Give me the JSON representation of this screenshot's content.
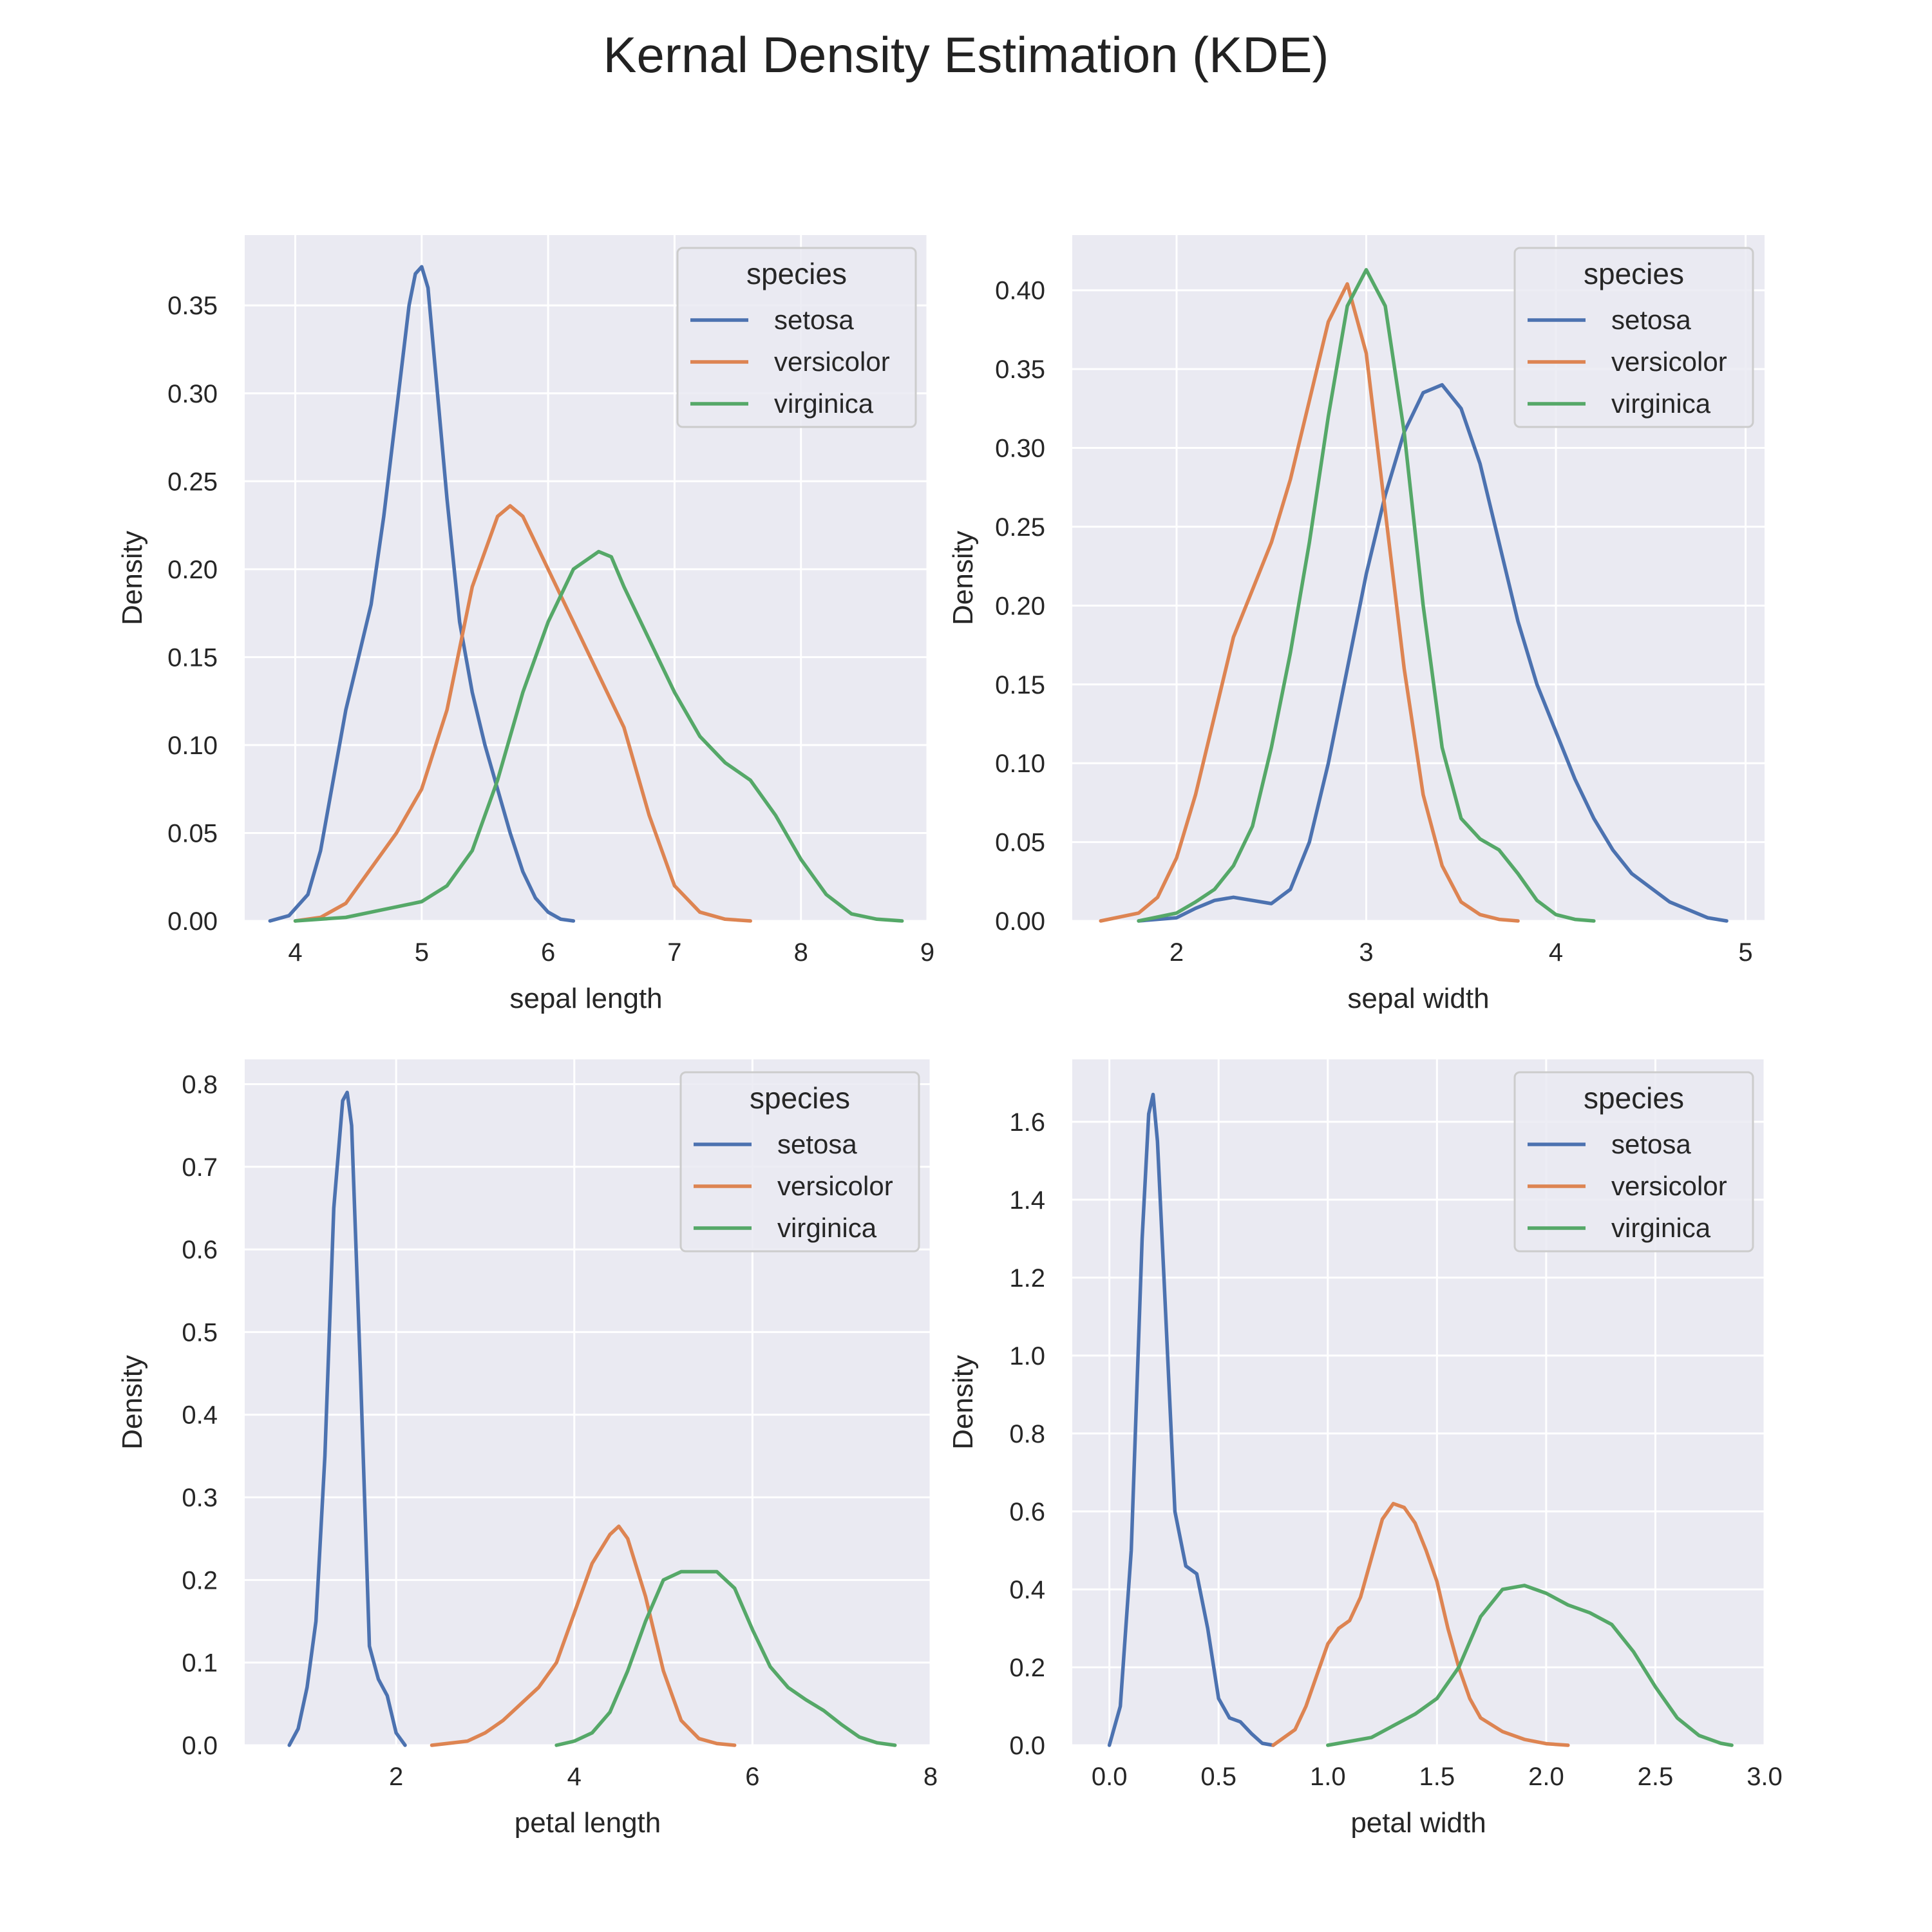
{
  "figure": {
    "title": "Kernal Density Estimation (KDE)"
  },
  "style": {
    "background": "#eaeaf2",
    "grid_color": "#ffffff",
    "series_colors": {
      "setosa": "#4c72b0",
      "versicolor": "#dd8452",
      "virginica": "#55a868"
    }
  },
  "chart_data": [
    {
      "type": "line",
      "xlabel": "sepal length",
      "ylabel": "Density",
      "xlim": [
        3.6,
        9.0
      ],
      "ylim": [
        0,
        0.39
      ],
      "xticks": [
        4,
        5,
        6,
        7,
        8,
        9
      ],
      "yticks": [
        0.0,
        0.05,
        0.1,
        0.15,
        0.2,
        0.25,
        0.3,
        0.35
      ],
      "ytick_decimals": 2,
      "xtick_decimals": 0,
      "grid": true,
      "legend": {
        "title": "species",
        "placement": "top-right",
        "entries": [
          "setosa",
          "versicolor",
          "virginica"
        ]
      },
      "series": [
        {
          "name": "setosa",
          "color": "#4c72b0",
          "x": [
            3.8,
            3.95,
            4.1,
            4.2,
            4.3,
            4.4,
            4.5,
            4.6,
            4.7,
            4.8,
            4.9,
            4.95,
            5.0,
            5.05,
            5.1,
            5.2,
            5.3,
            5.4,
            5.5,
            5.6,
            5.7,
            5.8,
            5.9,
            6.0,
            6.1,
            6.2
          ],
          "y": [
            0.0,
            0.003,
            0.015,
            0.04,
            0.08,
            0.12,
            0.15,
            0.18,
            0.23,
            0.29,
            0.35,
            0.368,
            0.372,
            0.36,
            0.32,
            0.24,
            0.17,
            0.13,
            0.1,
            0.075,
            0.05,
            0.028,
            0.013,
            0.005,
            0.001,
            0.0
          ]
        },
        {
          "name": "versicolor",
          "color": "#dd8452",
          "x": [
            4.0,
            4.2,
            4.4,
            4.6,
            4.8,
            5.0,
            5.2,
            5.4,
            5.6,
            5.7,
            5.8,
            6.0,
            6.2,
            6.4,
            6.6,
            6.8,
            7.0,
            7.2,
            7.4,
            7.6
          ],
          "y": [
            0.0,
            0.002,
            0.01,
            0.03,
            0.05,
            0.075,
            0.12,
            0.19,
            0.23,
            0.236,
            0.23,
            0.2,
            0.17,
            0.14,
            0.11,
            0.06,
            0.02,
            0.005,
            0.001,
            0.0
          ]
        },
        {
          "name": "virginica",
          "color": "#55a868",
          "x": [
            4.0,
            4.4,
            4.6,
            4.8,
            5.0,
            5.2,
            5.4,
            5.6,
            5.8,
            6.0,
            6.2,
            6.4,
            6.5,
            6.6,
            6.8,
            7.0,
            7.2,
            7.4,
            7.6,
            7.8,
            8.0,
            8.2,
            8.4,
            8.6,
            8.8
          ],
          "y": [
            0.0,
            0.002,
            0.005,
            0.008,
            0.011,
            0.02,
            0.04,
            0.08,
            0.13,
            0.17,
            0.2,
            0.21,
            0.207,
            0.19,
            0.16,
            0.13,
            0.105,
            0.09,
            0.08,
            0.06,
            0.035,
            0.015,
            0.004,
            0.001,
            0.0
          ]
        }
      ]
    },
    {
      "type": "line",
      "xlabel": "sepal width",
      "ylabel": "Density",
      "xlim": [
        1.45,
        5.1
      ],
      "ylim": [
        0,
        0.435
      ],
      "xticks": [
        2,
        3,
        4,
        5
      ],
      "yticks": [
        0.0,
        0.05,
        0.1,
        0.15,
        0.2,
        0.25,
        0.3,
        0.35,
        0.4
      ],
      "ytick_decimals": 2,
      "xtick_decimals": 0,
      "grid": true,
      "legend": {
        "title": "species",
        "placement": "top-right",
        "entries": [
          "setosa",
          "versicolor",
          "virginica"
        ]
      },
      "series": [
        {
          "name": "setosa",
          "color": "#4c72b0",
          "x": [
            1.8,
            2.0,
            2.1,
            2.2,
            2.3,
            2.4,
            2.5,
            2.6,
            2.7,
            2.8,
            2.9,
            3.0,
            3.1,
            3.2,
            3.3,
            3.4,
            3.5,
            3.6,
            3.7,
            3.8,
            3.9,
            4.0,
            4.1,
            4.2,
            4.3,
            4.4,
            4.6,
            4.8,
            4.9
          ],
          "y": [
            0.0,
            0.002,
            0.008,
            0.013,
            0.015,
            0.013,
            0.011,
            0.02,
            0.05,
            0.1,
            0.16,
            0.22,
            0.27,
            0.31,
            0.335,
            0.34,
            0.325,
            0.29,
            0.24,
            0.19,
            0.15,
            0.12,
            0.09,
            0.065,
            0.045,
            0.03,
            0.012,
            0.002,
            0.0
          ]
        },
        {
          "name": "versicolor",
          "color": "#dd8452",
          "x": [
            1.6,
            1.8,
            1.9,
            2.0,
            2.1,
            2.2,
            2.3,
            2.4,
            2.5,
            2.6,
            2.7,
            2.8,
            2.9,
            3.0,
            3.1,
            3.2,
            3.3,
            3.4,
            3.5,
            3.6,
            3.7,
            3.8
          ],
          "y": [
            0.0,
            0.005,
            0.015,
            0.04,
            0.08,
            0.13,
            0.18,
            0.21,
            0.24,
            0.28,
            0.33,
            0.38,
            0.404,
            0.36,
            0.26,
            0.16,
            0.08,
            0.035,
            0.012,
            0.004,
            0.001,
            0.0
          ]
        },
        {
          "name": "virginica",
          "color": "#55a868",
          "x": [
            1.8,
            2.0,
            2.1,
            2.2,
            2.3,
            2.4,
            2.5,
            2.6,
            2.7,
            2.8,
            2.9,
            3.0,
            3.1,
            3.2,
            3.3,
            3.4,
            3.5,
            3.6,
            3.7,
            3.8,
            3.9,
            4.0,
            4.1,
            4.2
          ],
          "y": [
            0.0,
            0.005,
            0.012,
            0.02,
            0.035,
            0.06,
            0.11,
            0.17,
            0.24,
            0.32,
            0.39,
            0.413,
            0.39,
            0.31,
            0.2,
            0.11,
            0.065,
            0.052,
            0.045,
            0.03,
            0.013,
            0.004,
            0.001,
            0.0
          ]
        }
      ]
    },
    {
      "type": "line",
      "xlabel": "petal length",
      "ylabel": "Density",
      "xlim": [
        0.3,
        8.0
      ],
      "ylim": [
        0,
        0.83
      ],
      "xticks": [
        2,
        4,
        6,
        8
      ],
      "yticks": [
        0.0,
        0.1,
        0.2,
        0.3,
        0.4,
        0.5,
        0.6,
        0.7,
        0.8
      ],
      "ytick_decimals": 1,
      "xtick_decimals": 0,
      "grid": true,
      "legend": {
        "title": "species",
        "placement": "top-right",
        "entries": [
          "setosa",
          "versicolor",
          "virginica"
        ]
      },
      "series": [
        {
          "name": "setosa",
          "color": "#4c72b0",
          "x": [
            0.8,
            0.9,
            1.0,
            1.1,
            1.2,
            1.3,
            1.4,
            1.45,
            1.5,
            1.6,
            1.7,
            1.8,
            1.9,
            2.0,
            2.1
          ],
          "y": [
            0.0,
            0.02,
            0.07,
            0.15,
            0.35,
            0.65,
            0.78,
            0.79,
            0.75,
            0.45,
            0.12,
            0.08,
            0.06,
            0.015,
            0.0
          ]
        },
        {
          "name": "versicolor",
          "color": "#dd8452",
          "x": [
            2.4,
            2.8,
            3.0,
            3.2,
            3.4,
            3.6,
            3.8,
            4.0,
            4.2,
            4.4,
            4.5,
            4.6,
            4.8,
            5.0,
            5.2,
            5.4,
            5.6,
            5.8
          ],
          "y": [
            0.0,
            0.005,
            0.015,
            0.03,
            0.05,
            0.07,
            0.1,
            0.16,
            0.22,
            0.255,
            0.265,
            0.25,
            0.18,
            0.09,
            0.03,
            0.008,
            0.002,
            0.0
          ]
        },
        {
          "name": "virginica",
          "color": "#55a868",
          "x": [
            3.8,
            4.0,
            4.2,
            4.4,
            4.6,
            4.8,
            5.0,
            5.2,
            5.4,
            5.6,
            5.8,
            6.0,
            6.2,
            6.4,
            6.6,
            6.8,
            7.0,
            7.2,
            7.4,
            7.6
          ],
          "y": [
            0.0,
            0.005,
            0.015,
            0.04,
            0.09,
            0.15,
            0.2,
            0.21,
            0.21,
            0.21,
            0.19,
            0.14,
            0.095,
            0.07,
            0.055,
            0.042,
            0.025,
            0.01,
            0.003,
            0.0
          ]
        }
      ]
    },
    {
      "type": "line",
      "xlabel": "petal width",
      "ylabel": "Density",
      "xlim": [
        -0.17,
        3.0
      ],
      "ylim": [
        0,
        1.76
      ],
      "xticks": [
        0.0,
        0.5,
        1.0,
        1.5,
        2.0,
        2.5,
        3.0
      ],
      "yticks": [
        0.0,
        0.2,
        0.4,
        0.6,
        0.8,
        1.0,
        1.2,
        1.4,
        1.6
      ],
      "ytick_decimals": 1,
      "xtick_decimals": 1,
      "grid": true,
      "legend": {
        "title": "species",
        "placement": "top-right",
        "entries": [
          "setosa",
          "versicolor",
          "virginica"
        ]
      },
      "series": [
        {
          "name": "setosa",
          "color": "#4c72b0",
          "x": [
            0.0,
            0.05,
            0.1,
            0.15,
            0.18,
            0.2,
            0.22,
            0.25,
            0.3,
            0.35,
            0.4,
            0.45,
            0.5,
            0.55,
            0.6,
            0.65,
            0.7,
            0.75
          ],
          "y": [
            0.0,
            0.1,
            0.5,
            1.3,
            1.62,
            1.67,
            1.55,
            1.2,
            0.6,
            0.46,
            0.44,
            0.3,
            0.12,
            0.07,
            0.06,
            0.03,
            0.005,
            0.0
          ]
        },
        {
          "name": "versicolor",
          "color": "#dd8452",
          "x": [
            0.75,
            0.85,
            0.9,
            0.95,
            1.0,
            1.05,
            1.1,
            1.15,
            1.2,
            1.25,
            1.3,
            1.35,
            1.4,
            1.45,
            1.5,
            1.55,
            1.6,
            1.65,
            1.7,
            1.8,
            1.9,
            2.0,
            2.1
          ],
          "y": [
            0.0,
            0.04,
            0.1,
            0.18,
            0.26,
            0.3,
            0.32,
            0.38,
            0.48,
            0.58,
            0.62,
            0.61,
            0.57,
            0.5,
            0.42,
            0.3,
            0.2,
            0.12,
            0.07,
            0.035,
            0.015,
            0.004,
            0.0
          ]
        },
        {
          "name": "virginica",
          "color": "#55a868",
          "x": [
            1.0,
            1.2,
            1.3,
            1.4,
            1.5,
            1.6,
            1.7,
            1.8,
            1.9,
            2.0,
            2.1,
            2.2,
            2.3,
            2.4,
            2.5,
            2.6,
            2.7,
            2.8,
            2.85
          ],
          "y": [
            0.0,
            0.02,
            0.05,
            0.08,
            0.12,
            0.2,
            0.33,
            0.4,
            0.41,
            0.39,
            0.36,
            0.34,
            0.31,
            0.24,
            0.15,
            0.07,
            0.025,
            0.005,
            0.0
          ]
        }
      ]
    }
  ]
}
